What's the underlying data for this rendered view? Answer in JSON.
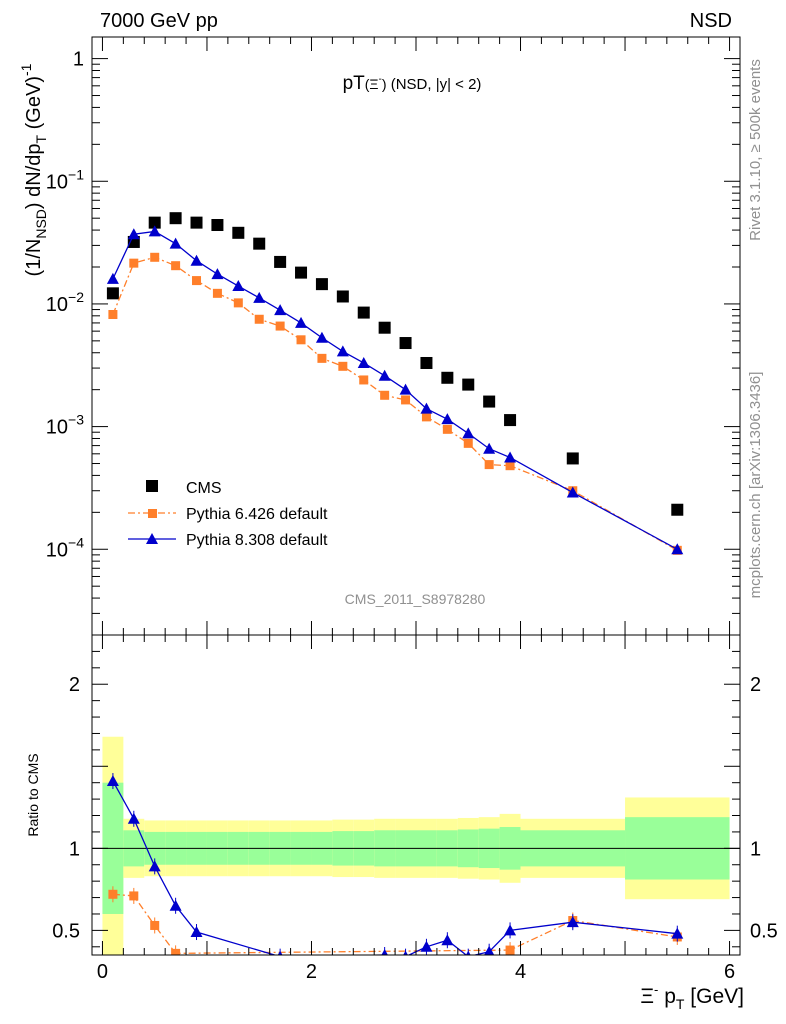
{
  "header": {
    "left": "7000 GeV pp",
    "right": "NSD"
  },
  "side_text": {
    "rivet": "Rivet 3.1.10, ≥ 500k events",
    "mcplots": "mcplots.cern.ch [arXiv:1306.3436]"
  },
  "chart_data": [
    {
      "type": "scatter",
      "title": "pT(Ξ⁻) (NSD, |y| < 2)",
      "watermark": "CMS_2011_S8978280",
      "ylabel": "(1/N_NSD) dN/dp_T (GeV)^-1",
      "yscale": "log",
      "ylim": [
        2e-05,
        1.5
      ],
      "xlim": [
        -0.1,
        6.1
      ],
      "y_ticklabels": [
        "1",
        "10^-1",
        "10^-2",
        "10^-3",
        "10^-4"
      ],
      "legend": {
        "position": "lower-left",
        "entries": [
          "CMS",
          "Pythia 6.426 default",
          "Pythia 8.308 default"
        ]
      },
      "series": [
        {
          "name": "CMS",
          "marker": "square",
          "color": "#000000",
          "x": [
            0.1,
            0.3,
            0.5,
            0.7,
            0.9,
            1.1,
            1.3,
            1.5,
            1.7,
            1.9,
            2.1,
            2.3,
            2.5,
            2.7,
            2.9,
            3.1,
            3.3,
            3.5,
            3.7,
            3.9,
            4.5,
            5.5
          ],
          "y": [
            0.0122,
            0.032,
            0.046,
            0.05,
            0.046,
            0.044,
            0.038,
            0.031,
            0.022,
            0.018,
            0.0145,
            0.0115,
            0.0085,
            0.0064,
            0.0048,
            0.0033,
            0.0025,
            0.0022,
            0.0016,
            0.00113,
            0.00055,
            0.00021
          ]
        },
        {
          "name": "Pythia 6.426 default",
          "marker": "square",
          "line": "dash-dot",
          "color": "#ff7f2a",
          "x": [
            0.1,
            0.3,
            0.5,
            0.7,
            0.9,
            1.1,
            1.3,
            1.5,
            1.7,
            1.9,
            2.1,
            2.3,
            2.5,
            2.7,
            2.9,
            3.1,
            3.3,
            3.5,
            3.7,
            3.9,
            4.5,
            5.5
          ],
          "y": [
            0.0082,
            0.0215,
            0.024,
            0.0205,
            0.0155,
            0.0122,
            0.0102,
            0.0075,
            0.0066,
            0.0051,
            0.0036,
            0.0031,
            0.0024,
            0.0018,
            0.00165,
            0.0012,
            0.00095,
            0.00073,
            0.00049,
            0.00048,
            0.0003,
            9.8e-05
          ]
        },
        {
          "name": "Pythia 8.308 default",
          "marker": "triangle",
          "line": "solid",
          "color": "#0000cc",
          "x": [
            0.1,
            0.3,
            0.5,
            0.7,
            0.9,
            1.1,
            1.3,
            1.5,
            1.7,
            1.9,
            2.1,
            2.3,
            2.5,
            2.7,
            2.9,
            3.1,
            3.3,
            3.5,
            3.7,
            3.9,
            4.5,
            5.5
          ],
          "y": [
            0.016,
            0.037,
            0.039,
            0.031,
            0.0225,
            0.0175,
            0.014,
            0.0112,
            0.0089,
            0.007,
            0.0053,
            0.0041,
            0.0033,
            0.0026,
            0.002,
            0.0014,
            0.00115,
            0.00088,
            0.00066,
            0.00056,
            0.00029,
            0.0001
          ]
        }
      ]
    },
    {
      "type": "scatter",
      "ylabel": "Ratio to CMS",
      "xlabel": "Ξ⁻ p_T [GeV]",
      "xlim": [
        -0.1,
        6.1
      ],
      "ylim": [
        0.35,
        2.3
      ],
      "x_ticklabels": [
        "0",
        "2",
        "4",
        "6"
      ],
      "y_ticklabels": [
        "0.5",
        "1",
        "2"
      ],
      "reference_line": 1,
      "bands": {
        "x_edges": [
          0.0,
          0.2,
          0.4,
          0.6,
          0.8,
          1.0,
          1.2,
          1.4,
          1.6,
          1.8,
          2.0,
          2.2,
          2.4,
          2.6,
          2.8,
          3.0,
          3.2,
          3.4,
          3.6,
          3.8,
          4.0,
          5.0,
          6.0
        ],
        "yellow_half": [
          0.68,
          0.18,
          0.17,
          0.17,
          0.17,
          0.17,
          0.17,
          0.17,
          0.17,
          0.17,
          0.17,
          0.175,
          0.175,
          0.18,
          0.18,
          0.18,
          0.18,
          0.185,
          0.19,
          0.21,
          0.18,
          0.31
        ],
        "green_half": [
          0.4,
          0.11,
          0.1,
          0.1,
          0.1,
          0.1,
          0.1,
          0.1,
          0.1,
          0.1,
          0.1,
          0.105,
          0.105,
          0.11,
          0.11,
          0.11,
          0.11,
          0.115,
          0.12,
          0.13,
          0.11,
          0.19
        ]
      },
      "series": [
        {
          "name": "Pythia 6.426 default",
          "color": "#ff7f2a",
          "x": [
            0.1,
            0.3,
            0.5,
            0.7,
            3.9,
            4.5,
            5.5
          ],
          "y": [
            0.72,
            0.71,
            0.53,
            0.36,
            0.38,
            0.56,
            0.46
          ]
        },
        {
          "name": "Pythia 8.308 default",
          "color": "#0000cc",
          "x": [
            0.1,
            0.3,
            0.5,
            0.7,
            0.9,
            1.7,
            2.7,
            2.9,
            3.1,
            3.3,
            3.5,
            3.7,
            3.9,
            4.5,
            5.5
          ],
          "y": [
            1.41,
            1.18,
            0.89,
            0.65,
            0.49,
            0.34,
            0.35,
            0.34,
            0.4,
            0.44,
            0.34,
            0.37,
            0.5,
            0.55,
            0.48
          ]
        }
      ]
    }
  ]
}
